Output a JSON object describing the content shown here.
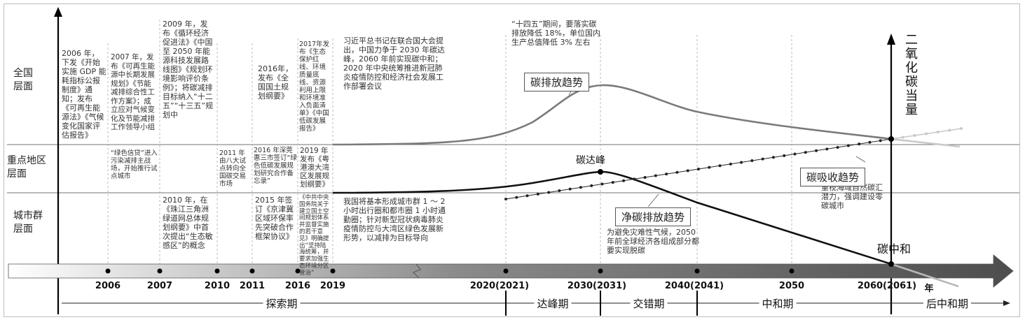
{
  "levels": [
    "全国\n层面",
    "重点地区\n层面",
    "城市群\n层面"
  ],
  "y_axis_label": "二氧化碳当量",
  "year_axis_unit": "年",
  "timeline_years": [
    "2006",
    "2007",
    "2010",
    "2011",
    "2016",
    "2019",
    "2020(2021)",
    "2030(2031)",
    "2040(2041)",
    "2050",
    "2060(2061)"
  ],
  "phases": [
    "探索期",
    "达峰期",
    "交错期",
    "中和期",
    "后中和期"
  ],
  "curve_labels": {
    "emission_trend": "碳排放趋势",
    "absorption_trend": "碳吸收趋势",
    "net_emission_trend": "净碳排放趋势",
    "peak": "碳达峰",
    "neutrality": "碳中和"
  },
  "notes": {
    "n2006": "2006 年，下发《开始实施 GDP 能耗指标公报制度》通知；发布《可再生能源法》《气候变化国家评估报告》",
    "n2007": "2007 年，发布《可再生能源中长期发展规划》《节能减排综合性工作方案》；成立应对气候变化及节能减排工作领导小组",
    "n2009": "2009 年，发布《循环经济促进法》《中国至 2050 年能源科技发展路线图》《规划环境影响评价条例》；将碳减排目标纳入“十二五”“十三五”规划中",
    "n2016": "2016年，发布《全国国土规划纲要》",
    "n2017": "2017年发布《生态保护红线、环境质量底线、资源利用上限和环境准入负面清单》《中国低碳发展报告》",
    "n2020": "习近平总书记在联合国大会提出，中国力争于 2030 年碳达峰，2060 年前实现碳中和；\n2020 年中央统筹推进新冠肺炎疫情防控和经济社会发展工作部署会议",
    "n145": "“十四五”期间，要落实碳排放降低 18%，单位国内生产总值降低 3% 左右",
    "green_credit": "“绿色信贷”进入污染减排主战场，开始推行试点城市",
    "r2011": "2011 年由八大试点转向全国碳交易市场",
    "r2016": "2016 年深莞惠三市签订“绿色低碳发展规划研究合作备忘录”",
    "r2019": "2019 年发布《粤港澳大湾区发展规划纲要》",
    "c2010": "2010 年，在《珠江三角洲绿道网总体规划纲要》中首次提出“生态敏感区”的概念",
    "c2015": "2015 年签订《京津冀区域环保率先突破合作框架协议》",
    "c2019": "《中共中央国务院关于建立国土空间规划体系并监督实施的若干意见》明确提出“坚持陆海统筹，并要求加强生态环境分区管治”",
    "c2020": "我国将基本形成城市群 1 ～ 2 小时出行圈和都市圈 1 小时通勤圈；针对新型冠状病毒肺炎疫情防控与大湾区绿色发展新形势，以减排为目标导向",
    "absorb_note": "重视海域自然碳汇潜力，强调建设零碳城市",
    "net_note": "为避免灾难性气候，2050 年前全球经济各组成部分都要实现脱碳"
  },
  "colors": {
    "emission": "#7a7a7a",
    "net": "#111111",
    "arrow": "#555555",
    "light": "#b5b5b5"
  }
}
